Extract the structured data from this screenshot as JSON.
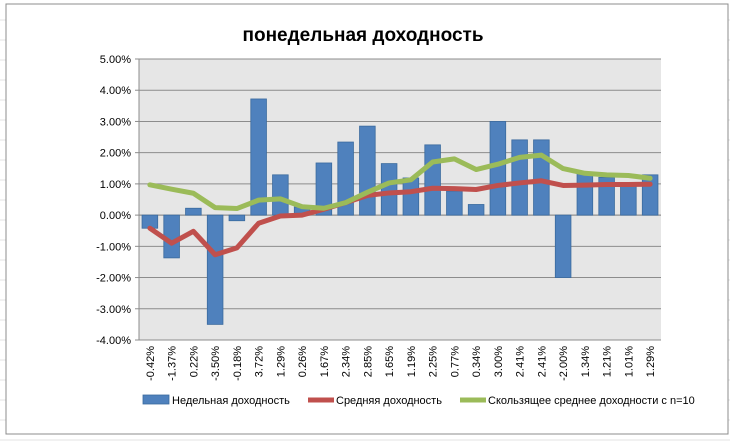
{
  "chart_data": {
    "type": "bar",
    "title": "понедельная доходность",
    "xlabel": "",
    "ylabel": "",
    "ylim": [
      -4,
      5
    ],
    "yticks": [
      "5.00%",
      "4.00%",
      "3.00%",
      "2.00%",
      "1.00%",
      "0.00%",
      "-1.00%",
      "-2.00%",
      "-3.00%",
      "-4.00%"
    ],
    "ytick_values": [
      5,
      4,
      3,
      2,
      1,
      0,
      -1,
      -2,
      -3,
      -4
    ],
    "grid": true,
    "legend_position": "bottom",
    "categories": [
      "-0.42%",
      "-1.37%",
      "0.22%",
      "-3.50%",
      "-0.18%",
      "3.72%",
      "1.29%",
      "0.26%",
      "1.67%",
      "2.34%",
      "2.85%",
      "1.65%",
      "1.19%",
      "2.25%",
      "0.77%",
      "0.34%",
      "3.00%",
      "2.41%",
      "2.41%",
      "-2.00%",
      "1.34%",
      "1.21%",
      "1.01%",
      "1.29%"
    ],
    "series": [
      {
        "name": "Недельная доходность",
        "kind": "bar",
        "color": "#4F81BD",
        "values": [
          -0.42,
          -1.37,
          0.22,
          -3.5,
          -0.18,
          3.72,
          1.29,
          0.26,
          1.67,
          2.34,
          2.85,
          1.65,
          1.19,
          2.25,
          0.77,
          0.34,
          3.0,
          2.41,
          2.41,
          -2.0,
          1.34,
          1.21,
          1.01,
          1.29
        ]
      },
      {
        "name": "Средняя доходность",
        "kind": "line",
        "color": "#C0504D",
        "values": [
          -0.42,
          -0.9,
          -0.52,
          -1.27,
          -1.05,
          -0.26,
          -0.03,
          0.0,
          0.19,
          0.4,
          0.63,
          0.71,
          0.75,
          0.86,
          0.85,
          0.82,
          0.95,
          1.03,
          1.1,
          0.95,
          0.96,
          0.98,
          0.98,
          0.99
        ]
      },
      {
        "name": "Скользящее среднее доходности с n=10",
        "kind": "line",
        "color": "#9BBB59",
        "values": [
          0.97,
          0.83,
          0.7,
          0.24,
          0.21,
          0.48,
          0.52,
          0.27,
          0.22,
          0.4,
          0.73,
          1.03,
          1.13,
          1.7,
          1.8,
          1.46,
          1.63,
          1.85,
          1.92,
          1.49,
          1.34,
          1.29,
          1.27,
          1.18
        ]
      }
    ]
  }
}
